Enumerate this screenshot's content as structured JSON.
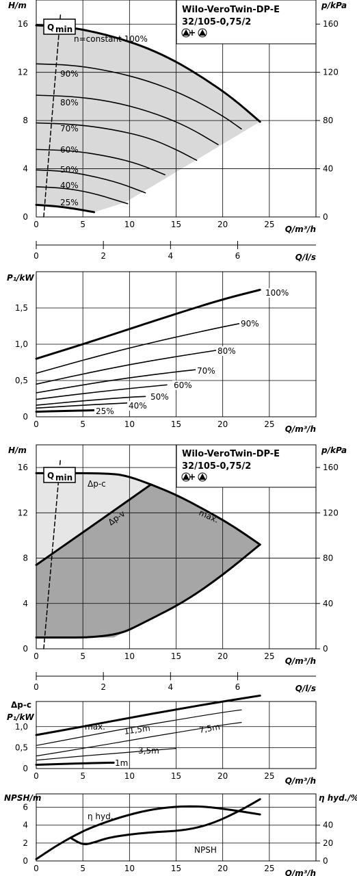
{
  "title_box": {
    "line1": "Wilo-VeroTwin-DP-E",
    "line2": "32/105-0,75/2",
    "line3": "▲+▲"
  },
  "qmin_label": "Q",
  "qmin_sub": "min",
  "chart_data": [
    {
      "type": "line",
      "id": "hq",
      "ylabel": "H/m",
      "ylabel_right": "p/kPa",
      "xlabel": "Q/m³/h",
      "xlim": [
        0,
        30
      ],
      "ylim": [
        0,
        18
      ],
      "xticks": [
        0,
        5,
        10,
        15,
        20,
        25
      ],
      "yticks": [
        0,
        4,
        8,
        12,
        16
      ],
      "yticks_right": [
        0,
        40,
        80,
        120,
        160
      ],
      "series": [
        {
          "name": "n=constant 100%",
          "x": [
            0,
            3,
            6,
            9,
            12,
            15,
            18,
            21,
            24
          ],
          "y": [
            15.9,
            15.8,
            15.4,
            14.8,
            14.0,
            12.9,
            11.5,
            9.9,
            7.9
          ]
        },
        {
          "name": "90%",
          "x": [
            0,
            4,
            8,
            12,
            16,
            20,
            22
          ],
          "y": [
            12.7,
            12.6,
            12.1,
            11.3,
            10.1,
            8.4,
            7.3
          ]
        },
        {
          "name": "80%",
          "x": [
            0,
            4,
            8,
            12,
            16,
            19.5
          ],
          "y": [
            10.1,
            10.0,
            9.6,
            8.8,
            7.6,
            6.0
          ]
        },
        {
          "name": "70%",
          "x": [
            0,
            4,
            8,
            12,
            15,
            17.2
          ],
          "y": [
            7.8,
            7.7,
            7.3,
            6.6,
            5.6,
            4.7
          ]
        },
        {
          "name": "60%",
          "x": [
            0,
            4,
            8,
            11,
            13.8
          ],
          "y": [
            5.6,
            5.5,
            5.0,
            4.4,
            3.5
          ]
        },
        {
          "name": "50%",
          "x": [
            0,
            3,
            6,
            9,
            11.7
          ],
          "y": [
            3.9,
            3.8,
            3.4,
            2.8,
            2.0
          ]
        },
        {
          "name": "40%",
          "x": [
            0,
            3,
            6,
            9.8
          ],
          "y": [
            2.5,
            2.4,
            2.0,
            1.1
          ]
        },
        {
          "name": "25%",
          "x": [
            0,
            2,
            4,
            6.2
          ],
          "y": [
            1.0,
            0.9,
            0.7,
            0.4
          ]
        },
        {
          "name": "Q",
          "x": [
            0.8,
            2.6
          ],
          "y": [
            0,
            16.8
          ]
        }
      ],
      "labels": [
        "n=constant 100%",
        "90%",
        "80%",
        "70%",
        "60%",
        "50%",
        "40%",
        "25%"
      ]
    },
    {
      "type": "axis",
      "id": "qls",
      "xlabel": "Q/l/s",
      "xticks": [
        0,
        2,
        4,
        6
      ]
    },
    {
      "type": "line",
      "id": "p1a",
      "ylabel": "P₁/kW",
      "xlabel": "Q/m³/h",
      "xlim": [
        0,
        30
      ],
      "ylim": [
        0,
        2.0
      ],
      "xticks": [
        0,
        5,
        10,
        15,
        20,
        25
      ],
      "yticks": [
        "0",
        "0,5",
        "1,0",
        "1,5"
      ],
      "series": [
        {
          "name": "100%",
          "x": [
            0,
            5,
            10,
            15,
            20,
            24
          ],
          "y": [
            0.8,
            1.0,
            1.21,
            1.42,
            1.62,
            1.75
          ]
        },
        {
          "name": "90%",
          "x": [
            0,
            5,
            10,
            15,
            20,
            22
          ],
          "y": [
            0.6,
            0.78,
            0.95,
            1.1,
            1.24,
            1.29
          ]
        },
        {
          "name": "80%",
          "x": [
            0,
            5,
            10,
            15,
            19.5
          ],
          "y": [
            0.45,
            0.59,
            0.72,
            0.83,
            0.92
          ]
        },
        {
          "name": "70%",
          "x": [
            0,
            5,
            10,
            15,
            17.2
          ],
          "y": [
            0.33,
            0.44,
            0.54,
            0.62,
            0.65
          ]
        },
        {
          "name": "60%",
          "x": [
            0,
            5,
            10,
            14
          ],
          "y": [
            0.24,
            0.32,
            0.39,
            0.44
          ]
        },
        {
          "name": "50%",
          "x": [
            0,
            5,
            10,
            11.7
          ],
          "y": [
            0.16,
            0.22,
            0.27,
            0.28
          ]
        },
        {
          "name": "40%",
          "x": [
            0,
            5,
            9.8
          ],
          "y": [
            0.12,
            0.16,
            0.19
          ]
        },
        {
          "name": "25%",
          "x": [
            0,
            3,
            6.2
          ],
          "y": [
            0.07,
            0.08,
            0.09
          ]
        }
      ],
      "labels": [
        "100%",
        "90%",
        "80%",
        "70%",
        "60%",
        "50%",
        "40%",
        "25%"
      ]
    },
    {
      "type": "area",
      "id": "hq2",
      "ylabel": "H/m",
      "ylabel_right": "p/kPa",
      "xlabel": "Q/m³/h",
      "xlim": [
        0,
        30
      ],
      "ylim": [
        0,
        18
      ],
      "xticks": [
        0,
        5,
        10,
        15,
        20,
        25
      ],
      "yticks": [
        0,
        4,
        8,
        12,
        16
      ],
      "yticks_right": [
        0,
        40,
        80,
        120,
        160
      ],
      "series": [
        {
          "name": "Δp-c",
          "x": [
            0,
            8,
            10,
            12.3
          ],
          "y": [
            15.5,
            15.5,
            15.2,
            14.5
          ]
        },
        {
          "name": "Δp-v",
          "x": [
            0,
            4,
            8,
            12.3
          ],
          "y": [
            7.4,
            9.7,
            12.0,
            14.5
          ]
        },
        {
          "name": "max.",
          "x": [
            12.3,
            15,
            18,
            21,
            24
          ],
          "y": [
            14.5,
            13.6,
            12.3,
            10.9,
            9.2
          ]
        },
        {
          "name": "min",
          "x": [
            0,
            8.3,
            12,
            16,
            20,
            24
          ],
          "y": [
            1.0,
            1.0,
            2.5,
            4.2,
            6.5,
            9.2
          ]
        },
        {
          "name": "Q",
          "x": [
            0.8,
            2.6
          ],
          "y": [
            0,
            16.8
          ]
        }
      ],
      "labels": [
        "Δp-c",
        "Δp-v",
        "max."
      ]
    },
    {
      "type": "axis",
      "id": "qls2",
      "xlabel": "Q/l/s",
      "xticks": [
        0,
        2,
        4,
        6
      ]
    },
    {
      "type": "line",
      "id": "p1b",
      "ylabel": "Δp-c",
      "ylabel2": "P₁/kW",
      "xlabel": "Q/m³/h",
      "xlim": [
        0,
        30
      ],
      "ylim": [
        0,
        1.6
      ],
      "xticks": [
        0,
        5,
        10,
        15,
        20,
        25
      ],
      "yticks": [
        "0",
        "0,5",
        "1,0"
      ],
      "series": [
        {
          "name": "max.",
          "x": [
            0,
            5,
            10,
            15,
            20,
            24
          ],
          "y": [
            0.8,
            1.0,
            1.21,
            1.41,
            1.6,
            1.74
          ]
        },
        {
          "name": "11,5m",
          "x": [
            0,
            5,
            10,
            15,
            20,
            22
          ],
          "y": [
            0.55,
            0.76,
            0.97,
            1.16,
            1.34,
            1.4
          ]
        },
        {
          "name": "7,5m",
          "x": [
            0,
            5,
            10,
            15,
            20,
            22
          ],
          "y": [
            0.3,
            0.48,
            0.67,
            0.86,
            1.04,
            1.1
          ]
        },
        {
          "name": "3,5m",
          "x": [
            0,
            5,
            10,
            15
          ],
          "y": [
            0.2,
            0.3,
            0.39,
            0.48
          ]
        },
        {
          "name": "1m",
          "x": [
            0,
            4,
            8.3
          ],
          "y": [
            0.09,
            0.12,
            0.14
          ]
        }
      ],
      "labels": [
        "max.",
        "11,5m",
        "7,5m",
        "3,5m",
        "1m"
      ]
    },
    {
      "type": "line",
      "id": "npsh",
      "ylabel": "NPSH/m",
      "ylabel_right": "η hyd./%",
      "xlabel": "Q/m³/h",
      "xlim": [
        0,
        30
      ],
      "ylim": [
        0,
        7.5
      ],
      "xticks": [
        0,
        5,
        10,
        15,
        20,
        25
      ],
      "yticks": [
        0,
        2,
        4,
        6
      ],
      "yticks_right": [
        0,
        20,
        40
      ],
      "series": [
        {
          "name": "η hyd.",
          "x": [
            0,
            2,
            4,
            6,
            9,
            12,
            15,
            18,
            21,
            24
          ],
          "y": [
            0.2,
            1.6,
            2.8,
            3.8,
            4.9,
            5.7,
            6.1,
            6.1,
            5.7,
            5.2
          ]
        },
        {
          "name": "NPSH",
          "x": [
            3.8,
            5,
            6,
            8,
            12,
            16,
            19,
            22,
            24
          ],
          "y": [
            2.5,
            1.8,
            2.0,
            2.7,
            3.2,
            3.4,
            4.2,
            5.7,
            6.9
          ]
        }
      ],
      "labels": [
        "η hyd.",
        "NPSH"
      ]
    }
  ]
}
